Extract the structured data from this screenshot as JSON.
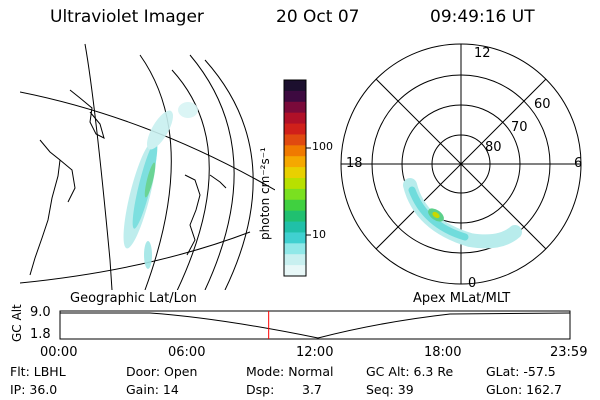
{
  "header": {
    "instrument": "Ultraviolet Imager",
    "date": "20 Oct 07",
    "time": "09:49:16 UT"
  },
  "left_panel": {
    "label": "Geographic Lat/Lon"
  },
  "right_panel": {
    "label": "Apex MLat/MLT",
    "mlt_labels": [
      "12",
      "18",
      "6",
      "0"
    ],
    "mlat_labels": [
      "60",
      "70",
      "80"
    ]
  },
  "colorbar": {
    "unit_label": "photon cm⁻²s⁻¹",
    "tick_labels": [
      "100",
      "10"
    ],
    "colors": [
      "#1c0f2e",
      "#3d0a40",
      "#7a0a3a",
      "#b01028",
      "#d0201a",
      "#e04a10",
      "#f07a00",
      "#f5a800",
      "#e8d000",
      "#b8e000",
      "#7ae020",
      "#40d040",
      "#20c070",
      "#20c0a8",
      "#40d0d0",
      "#90e8e8",
      "#c8f0f0",
      "#e8f8f8"
    ]
  },
  "timeline": {
    "y_axis_label": "GC Alt",
    "y_ticks": [
      "9.0",
      "1.8"
    ],
    "x_ticks": [
      "00:00",
      "06:00",
      "12:00",
      "18:00",
      "23:59"
    ],
    "current_time_hours": 9.82,
    "marker_color": "#ff0000"
  },
  "footer": {
    "flt": "Flt: LBHL",
    "ip": "IP: 36.0",
    "door": "Door: Open",
    "gain": "Gain: 14",
    "mode": "Mode: Normal",
    "dsp_label": "Dsp:",
    "dsp_value": "3.7",
    "gc_alt": "GC Alt: 6.3 Re",
    "seq": "Seq: 39",
    "glat": "GLat: -57.5",
    "glon": "GLon: 162.7"
  }
}
